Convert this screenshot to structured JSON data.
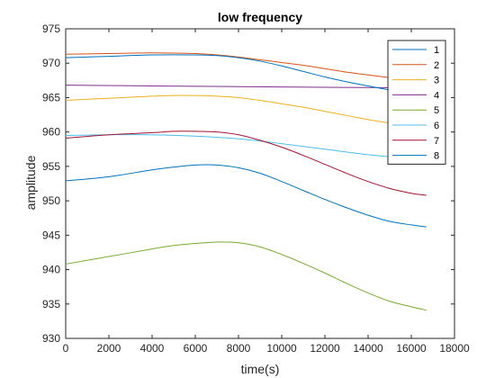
{
  "chart_data": {
    "type": "line",
    "title": "low frequency",
    "xlabel": "time(s)",
    "ylabel": "amplitude",
    "xlim": [
      0,
      18000
    ],
    "ylim": [
      930,
      975
    ],
    "xticks": [
      0,
      2000,
      4000,
      6000,
      8000,
      10000,
      12000,
      14000,
      16000,
      18000
    ],
    "yticks": [
      930,
      935,
      940,
      945,
      950,
      955,
      960,
      965,
      970,
      975
    ],
    "grid": false,
    "legend_position": "top-right",
    "series": [
      {
        "name": "1",
        "color": "#0072BD",
        "x": [
          0,
          2000,
          4000,
          5000,
          6000,
          7000,
          8000,
          9000,
          10000,
          11000,
          12000,
          13000,
          14000,
          15000,
          16000,
          16700
        ],
        "y": [
          952.9,
          953.5,
          954.5,
          954.9,
          955.2,
          955.2,
          954.8,
          954.0,
          952.8,
          951.5,
          950.2,
          949.0,
          947.9,
          947.0,
          946.5,
          946.2
        ]
      },
      {
        "name": "2",
        "color": "#D95319",
        "x": [
          0,
          2000,
          4000,
          6000,
          7000,
          8000,
          9000,
          10000,
          11000,
          12000,
          13000,
          14000,
          15000,
          16000,
          16700
        ],
        "y": [
          971.3,
          971.4,
          971.5,
          971.4,
          971.2,
          970.9,
          970.5,
          970.1,
          969.7,
          969.2,
          968.7,
          968.3,
          967.9,
          967.6,
          967.4
        ]
      },
      {
        "name": "3",
        "color": "#EDB120",
        "x": [
          0,
          2000,
          4000,
          5000,
          6000,
          7000,
          8000,
          9000,
          10000,
          11000,
          12000,
          13000,
          14000,
          15000,
          16000,
          16700
        ],
        "y": [
          964.6,
          964.9,
          965.2,
          965.3,
          965.3,
          965.2,
          965.0,
          964.6,
          964.1,
          963.6,
          963.0,
          962.4,
          961.8,
          961.3,
          960.9,
          960.7
        ]
      },
      {
        "name": "4",
        "color": "#7E2F8E",
        "x": [
          0,
          4000,
          8000,
          12000,
          16700
        ],
        "y": [
          966.8,
          966.7,
          966.6,
          966.5,
          966.4
        ]
      },
      {
        "name": "5",
        "color": "#77AC30",
        "x": [
          0,
          2000,
          4000,
          5000,
          6000,
          7000,
          8000,
          9000,
          10000,
          11000,
          12000,
          13000,
          14000,
          15000,
          16000,
          16700
        ],
        "y": [
          940.8,
          941.9,
          943.0,
          943.5,
          943.8,
          944.0,
          943.9,
          943.3,
          942.2,
          940.9,
          939.5,
          938.0,
          936.6,
          935.4,
          934.6,
          934.1
        ]
      },
      {
        "name": "6",
        "color": "#4DBEEE",
        "x": [
          0,
          2000,
          4000,
          6000,
          8000,
          10000,
          12000,
          14000,
          16000,
          16700
        ],
        "y": [
          959.5,
          959.6,
          959.6,
          959.4,
          959.0,
          958.3,
          957.5,
          956.7,
          956.1,
          955.9
        ]
      },
      {
        "name": "7",
        "color": "#A2142F",
        "x": [
          0,
          2000,
          4000,
          5000,
          6000,
          7000,
          8000,
          9000,
          10000,
          11000,
          12000,
          13000,
          14000,
          15000,
          16000,
          16700
        ],
        "y": [
          959.1,
          959.6,
          959.9,
          960.1,
          960.1,
          960.0,
          959.6,
          958.8,
          957.8,
          956.6,
          955.3,
          954.0,
          952.8,
          951.8,
          951.1,
          950.8
        ]
      },
      {
        "name": "8",
        "color": "#0072BD",
        "x": [
          0,
          2000,
          4000,
          6000,
          7000,
          8000,
          9000,
          10000,
          11000,
          12000,
          13000,
          14000,
          15000,
          16000,
          16700
        ],
        "y": [
          970.8,
          971.0,
          971.2,
          971.2,
          971.1,
          970.8,
          970.3,
          969.6,
          968.8,
          968.0,
          967.3,
          966.7,
          966.1,
          965.6,
          965.3
        ]
      }
    ]
  }
}
